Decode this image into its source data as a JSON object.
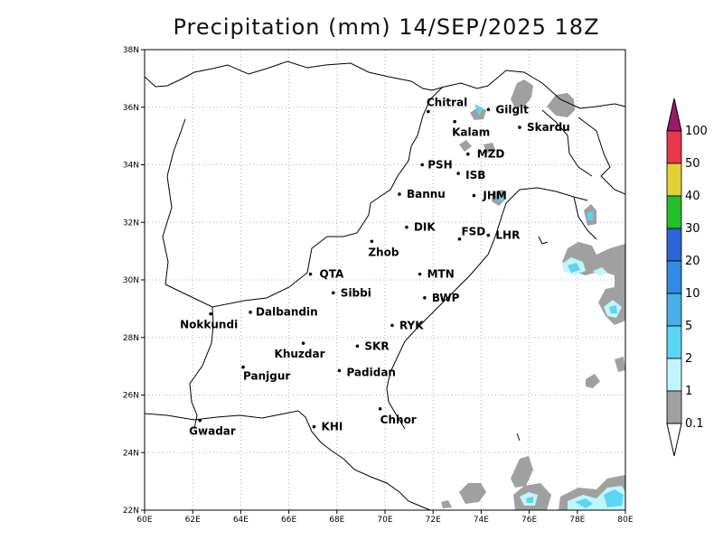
{
  "title": "Precipitation (mm) 14/SEP/2025 18Z",
  "axes": {
    "lon_ticks": [
      "60E",
      "62E",
      "64E",
      "66E",
      "68E",
      "70E",
      "72E",
      "74E",
      "76E",
      "78E",
      "80E"
    ],
    "lat_ticks": [
      "22N",
      "24N",
      "26N",
      "28N",
      "30N",
      "32N",
      "34N",
      "36N",
      "38N"
    ],
    "lon_range": [
      60,
      80
    ],
    "lat_range": [
      22,
      38
    ],
    "grid": true
  },
  "colorbar": {
    "levels": [
      "100",
      "50",
      "40",
      "30",
      "20",
      "10",
      "5",
      "2",
      "1",
      "0.1"
    ],
    "colors": [
      "#e8364a",
      "#e0d234",
      "#22c02a",
      "#2d64d8",
      "#2f8ce0",
      "#4aaee8",
      "#5cd4f4",
      "#bff6fa",
      "#a0a0a0"
    ],
    "top_color": "#9a1a6a"
  },
  "cities": [
    {
      "name": "Chitral",
      "lon": 71.8,
      "lat": 35.85
    },
    {
      "name": "Gilgit",
      "lon": 74.3,
      "lat": 35.92
    },
    {
      "name": "Kalam",
      "lon": 72.9,
      "lat": 35.5
    },
    {
      "name": "Skardu",
      "lon": 75.6,
      "lat": 35.3
    },
    {
      "name": "MZD",
      "lon": 73.45,
      "lat": 34.37
    },
    {
      "name": "PSH",
      "lon": 71.55,
      "lat": 34.0
    },
    {
      "name": "ISB",
      "lon": 73.05,
      "lat": 33.7
    },
    {
      "name": "JHM",
      "lon": 73.7,
      "lat": 32.93
    },
    {
      "name": "Bannu",
      "lon": 70.6,
      "lat": 32.98
    },
    {
      "name": "DIK",
      "lon": 70.9,
      "lat": 31.83
    },
    {
      "name": "FSD",
      "lon": 73.1,
      "lat": 31.42
    },
    {
      "name": "LHR",
      "lon": 74.3,
      "lat": 31.55
    },
    {
      "name": "Zhob",
      "lon": 69.45,
      "lat": 31.34
    },
    {
      "name": "QTA",
      "lon": 66.9,
      "lat": 30.2
    },
    {
      "name": "MTN",
      "lon": 71.45,
      "lat": 30.2
    },
    {
      "name": "Sibbi",
      "lon": 67.85,
      "lat": 29.55
    },
    {
      "name": "BWP",
      "lon": 71.65,
      "lat": 29.38
    },
    {
      "name": "Dalbandin",
      "lon": 64.4,
      "lat": 28.88
    },
    {
      "name": "Nokkundi",
      "lon": 62.75,
      "lat": 28.82
    },
    {
      "name": "RYK",
      "lon": 70.3,
      "lat": 28.42
    },
    {
      "name": "Khuzdar",
      "lon": 66.6,
      "lat": 27.8
    },
    {
      "name": "SKR",
      "lon": 68.85,
      "lat": 27.7
    },
    {
      "name": "Padidan",
      "lon": 68.1,
      "lat": 26.85
    },
    {
      "name": "Panjgur",
      "lon": 64.1,
      "lat": 26.97
    },
    {
      "name": "Chhor",
      "lon": 69.8,
      "lat": 25.52
    },
    {
      "name": "KHI",
      "lon": 67.05,
      "lat": 24.9
    },
    {
      "name": "Gwadar",
      "lon": 62.3,
      "lat": 25.12
    }
  ]
}
